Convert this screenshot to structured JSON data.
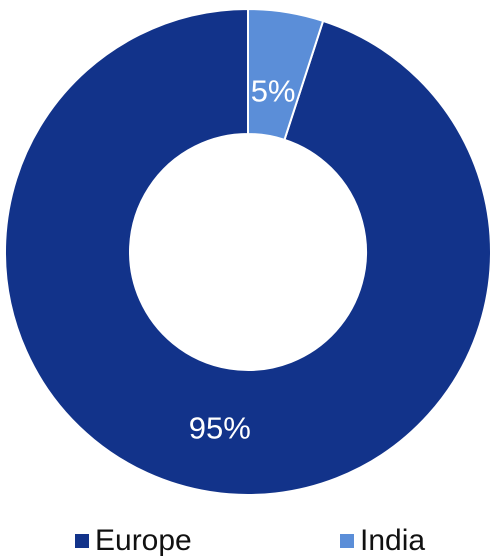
{
  "chart_data": {
    "type": "pie",
    "style": "donut",
    "categories": [
      "Europe",
      "India"
    ],
    "values": [
      95,
      5
    ],
    "data_labels": [
      "95%",
      "5%"
    ],
    "colors": [
      "#12338a",
      "#5b8ed8"
    ],
    "legend_position": "bottom",
    "title": ""
  }
}
